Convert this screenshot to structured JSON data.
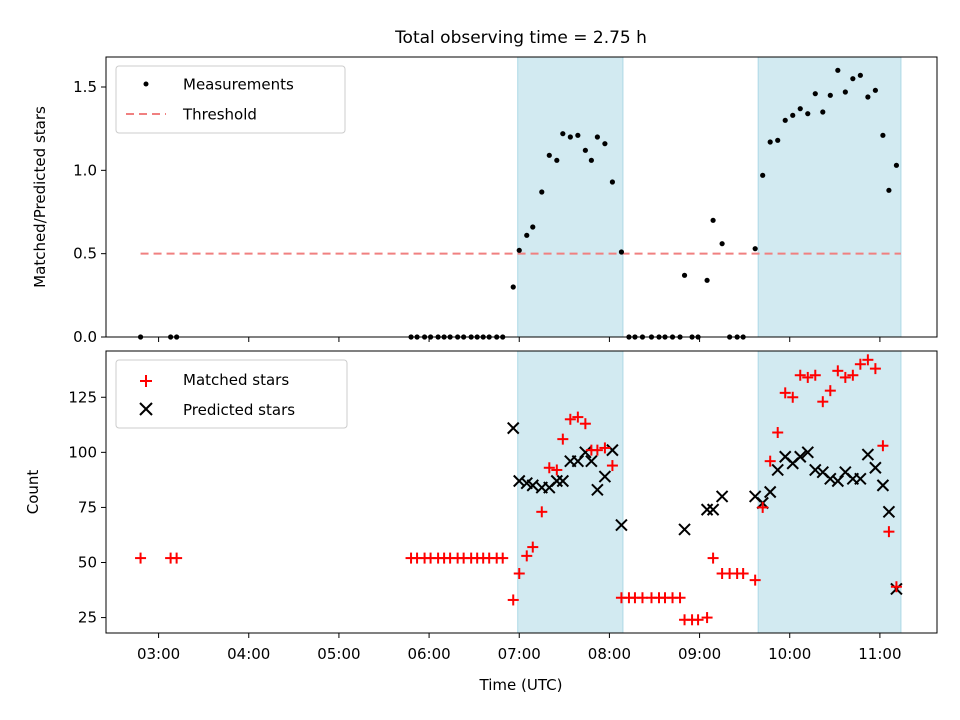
{
  "title": "Total observing time = 2.75 h",
  "chart_data": [
    {
      "type": "scatter",
      "ylabel": "Matched/Predicted stars",
      "xlim": [
        "02:25",
        "11:38"
      ],
      "ylim": [
        0,
        1.68
      ],
      "yticks": [
        0.0,
        0.5,
        1.0,
        1.5
      ],
      "ytick_labels": [
        "0.0",
        "0.5",
        "1.0",
        "1.5"
      ],
      "shaded_intervals": [
        [
          "06:59",
          "08:09"
        ],
        [
          "09:39",
          "11:14"
        ]
      ],
      "shade_color": "#add8e6",
      "legend": {
        "placement": "upper-left",
        "entries": [
          {
            "label": "Measurements",
            "marker": "dot",
            "color": "#000000"
          },
          {
            "label": "Threshold",
            "marker": "dashed-line",
            "color": "#f08080"
          }
        ]
      },
      "threshold": {
        "value": 0.5,
        "x_range": [
          "02:48",
          "11:14"
        ],
        "color": "#f08080"
      },
      "series": [
        {
          "name": "Measurements",
          "color": "#000000",
          "points": [
            [
              "02:48",
              0
            ],
            [
              "03:08",
              0
            ],
            [
              "03:12",
              0
            ],
            [
              "05:48",
              0
            ],
            [
              "05:52",
              0
            ],
            [
              "05:57",
              0
            ],
            [
              "06:01",
              0
            ],
            [
              "06:06",
              0
            ],
            [
              "06:10",
              0
            ],
            [
              "06:14",
              0
            ],
            [
              "06:19",
              0
            ],
            [
              "06:23",
              0
            ],
            [
              "06:28",
              0
            ],
            [
              "06:32",
              0
            ],
            [
              "06:36",
              0
            ],
            [
              "06:40",
              0
            ],
            [
              "06:45",
              0
            ],
            [
              "06:49",
              0
            ],
            [
              "06:56",
              0.3
            ],
            [
              "07:00",
              0.52
            ],
            [
              "07:05",
              0.61
            ],
            [
              "07:09",
              0.66
            ],
            [
              "07:15",
              0.87
            ],
            [
              "07:20",
              1.09
            ],
            [
              "07:25",
              1.06
            ],
            [
              "07:29",
              1.22
            ],
            [
              "07:34",
              1.2
            ],
            [
              "07:39",
              1.21
            ],
            [
              "07:44",
              1.12
            ],
            [
              "07:48",
              1.06
            ],
            [
              "07:52",
              1.2
            ],
            [
              "07:57",
              1.16
            ],
            [
              "08:02",
              0.93
            ],
            [
              "08:08",
              0.51
            ],
            [
              "08:13",
              0
            ],
            [
              "08:17",
              0
            ],
            [
              "08:22",
              0
            ],
            [
              "08:28",
              0
            ],
            [
              "08:33",
              0
            ],
            [
              "08:37",
              0
            ],
            [
              "08:42",
              0
            ],
            [
              "08:47",
              0
            ],
            [
              "08:50",
              0.37
            ],
            [
              "08:55",
              0
            ],
            [
              "08:59",
              0
            ],
            [
              "09:05",
              0.34
            ],
            [
              "09:09",
              0.7
            ],
            [
              "09:15",
              0.56
            ],
            [
              "09:20",
              0
            ],
            [
              "09:25",
              0
            ],
            [
              "09:29",
              0
            ],
            [
              "09:37",
              0.53
            ],
            [
              "09:42",
              0.97
            ],
            [
              "09:47",
              1.17
            ],
            [
              "09:52",
              1.18
            ],
            [
              "09:57",
              1.3
            ],
            [
              "10:02",
              1.33
            ],
            [
              "10:07",
              1.37
            ],
            [
              "10:12",
              1.34
            ],
            [
              "10:17",
              1.46
            ],
            [
              "10:22",
              1.35
            ],
            [
              "10:27",
              1.45
            ],
            [
              "10:32",
              1.6
            ],
            [
              "10:37",
              1.47
            ],
            [
              "10:42",
              1.55
            ],
            [
              "10:47",
              1.57
            ],
            [
              "10:52",
              1.44
            ],
            [
              "10:57",
              1.48
            ],
            [
              "11:02",
              1.21
            ],
            [
              "11:06",
              0.88
            ],
            [
              "11:11",
              1.03
            ]
          ]
        }
      ]
    },
    {
      "type": "scatter",
      "xlabel": "Time (UTC)",
      "ylabel": "Count",
      "xlim": [
        "02:25",
        "11:38"
      ],
      "ylim": [
        18,
        146
      ],
      "xticks": [
        "03:00",
        "04:00",
        "05:00",
        "06:00",
        "07:00",
        "08:00",
        "09:00",
        "10:00",
        "11:00"
      ],
      "yticks": [
        25,
        50,
        75,
        100,
        125
      ],
      "shaded_intervals": [
        [
          "06:59",
          "08:09"
        ],
        [
          "09:39",
          "11:14"
        ]
      ],
      "shade_color": "#add8e6",
      "legend": {
        "placement": "upper-left",
        "entries": [
          {
            "label": "Matched stars",
            "marker": "plus",
            "color": "#ff0000"
          },
          {
            "label": "Predicted stars",
            "marker": "x",
            "color": "#000000"
          }
        ]
      },
      "series": [
        {
          "name": "Matched stars",
          "marker": "plus",
          "color": "#ff0000",
          "points": [
            [
              "02:48",
              52
            ],
            [
              "03:08",
              52
            ],
            [
              "03:12",
              52
            ],
            [
              "05:48",
              52
            ],
            [
              "05:52",
              52
            ],
            [
              "05:57",
              52
            ],
            [
              "06:01",
              52
            ],
            [
              "06:06",
              52
            ],
            [
              "06:10",
              52
            ],
            [
              "06:14",
              52
            ],
            [
              "06:19",
              52
            ],
            [
              "06:23",
              52
            ],
            [
              "06:28",
              52
            ],
            [
              "06:32",
              52
            ],
            [
              "06:36",
              52
            ],
            [
              "06:40",
              52
            ],
            [
              "06:45",
              52
            ],
            [
              "06:49",
              52
            ],
            [
              "06:56",
              33
            ],
            [
              "07:00",
              45
            ],
            [
              "07:05",
              53
            ],
            [
              "07:09",
              57
            ],
            [
              "07:15",
              73
            ],
            [
              "07:20",
              93
            ],
            [
              "07:25",
              92
            ],
            [
              "07:29",
              106
            ],
            [
              "07:34",
              115
            ],
            [
              "07:39",
              116
            ],
            [
              "07:44",
              113
            ],
            [
              "07:48",
              101
            ],
            [
              "07:52",
              101
            ],
            [
              "07:57",
              102
            ],
            [
              "08:02",
              94
            ],
            [
              "08:08",
              34
            ],
            [
              "08:13",
              34
            ],
            [
              "08:17",
              34
            ],
            [
              "08:22",
              34
            ],
            [
              "08:28",
              34
            ],
            [
              "08:33",
              34
            ],
            [
              "08:37",
              34
            ],
            [
              "08:42",
              34
            ],
            [
              "08:47",
              34
            ],
            [
              "08:50",
              24
            ],
            [
              "08:55",
              24
            ],
            [
              "08:59",
              24
            ],
            [
              "09:05",
              25
            ],
            [
              "09:09",
              52
            ],
            [
              "09:15",
              45
            ],
            [
              "09:20",
              45
            ],
            [
              "09:25",
              45
            ],
            [
              "09:29",
              45
            ],
            [
              "09:37",
              42
            ],
            [
              "09:42",
              75
            ],
            [
              "09:47",
              96
            ],
            [
              "09:52",
              109
            ],
            [
              "09:57",
              127
            ],
            [
              "10:02",
              125
            ],
            [
              "10:07",
              135
            ],
            [
              "10:12",
              134
            ],
            [
              "10:17",
              135
            ],
            [
              "10:22",
              123
            ],
            [
              "10:27",
              128
            ],
            [
              "10:32",
              137
            ],
            [
              "10:37",
              134
            ],
            [
              "10:42",
              135
            ],
            [
              "10:47",
              140
            ],
            [
              "10:52",
              142
            ],
            [
              "10:57",
              138
            ],
            [
              "11:02",
              103
            ],
            [
              "11:06",
              64
            ],
            [
              "11:11",
              39
            ]
          ]
        },
        {
          "name": "Predicted stars",
          "marker": "x",
          "color": "#000000",
          "points": [
            [
              "06:56",
              111
            ],
            [
              "07:00",
              87
            ],
            [
              "07:05",
              86
            ],
            [
              "07:09",
              85
            ],
            [
              "07:15",
              84
            ],
            [
              "07:20",
              84
            ],
            [
              "07:25",
              87
            ],
            [
              "07:29",
              87
            ],
            [
              "07:34",
              96
            ],
            [
              "07:39",
              96
            ],
            [
              "07:44",
              100
            ],
            [
              "07:48",
              96
            ],
            [
              "07:52",
              83
            ],
            [
              "07:57",
              89
            ],
            [
              "08:02",
              101
            ],
            [
              "08:08",
              67
            ],
            [
              "08:50",
              65
            ],
            [
              "09:05",
              74
            ],
            [
              "09:09",
              74
            ],
            [
              "09:15",
              80
            ],
            [
              "09:37",
              80
            ],
            [
              "09:42",
              77
            ],
            [
              "09:47",
              82
            ],
            [
              "09:52",
              92
            ],
            [
              "09:57",
              98
            ],
            [
              "10:02",
              95
            ],
            [
              "10:07",
              98
            ],
            [
              "10:12",
              100
            ],
            [
              "10:17",
              92
            ],
            [
              "10:22",
              91
            ],
            [
              "10:27",
              88
            ],
            [
              "10:32",
              87
            ],
            [
              "10:37",
              91
            ],
            [
              "10:42",
              88
            ],
            [
              "10:47",
              88
            ],
            [
              "10:52",
              99
            ],
            [
              "10:57",
              93
            ],
            [
              "11:02",
              85
            ],
            [
              "11:06",
              73
            ],
            [
              "11:11",
              38
            ]
          ]
        }
      ]
    }
  ]
}
